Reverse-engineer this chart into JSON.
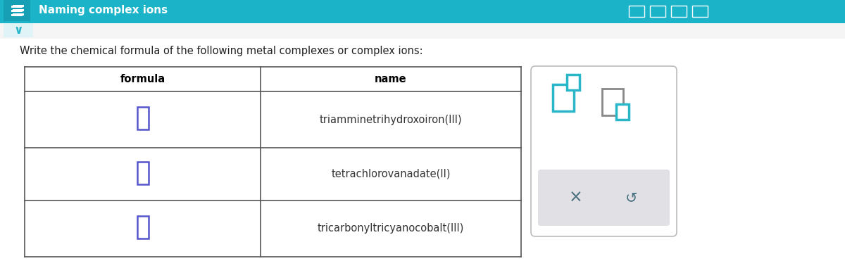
{
  "title": "Naming complex ions",
  "title_bg": "#1ab3c8",
  "title_color": "#ffffff",
  "instruction": "Write the chemical formula of the following metal complexes or complex ions:",
  "col1_header": "formula",
  "col2_header": "name",
  "rows": [
    {
      "name": "triamminetrihydroxoiron(III)"
    },
    {
      "name": "tetrachlorovanadate(II)"
    },
    {
      "name": "tricarbonyltricyanocobalt(III)"
    }
  ],
  "bg_color": "#ffffff",
  "table_border_color": "#555555",
  "header_text_color": "#000000",
  "row_text_color": "#333333",
  "checkbox_color": "#5555cc",
  "teal_color": "#29b6c8",
  "popup_border": "#bbbbbb",
  "gray_btn_bg": "#e0e0e5",
  "btn_text_color": "#4a7080",
  "chevron_color": "#29b6c8",
  "icon_gray": "#888888"
}
